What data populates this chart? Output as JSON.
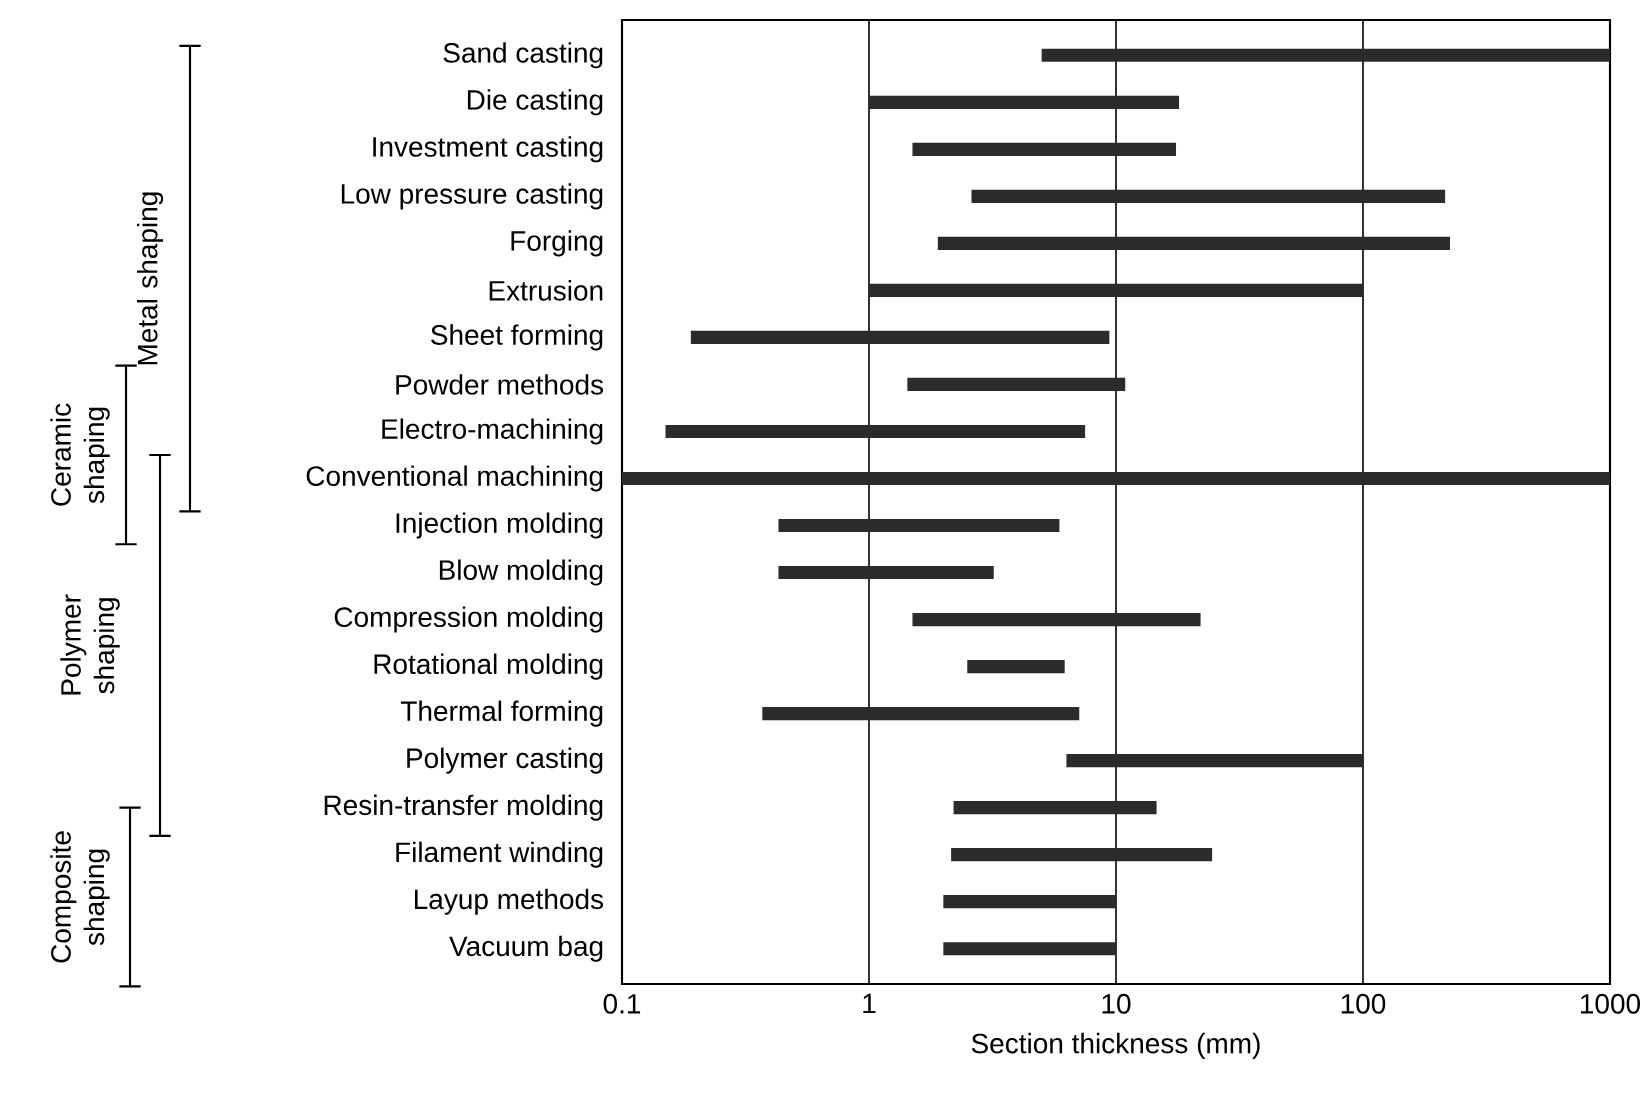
{
  "chart_data": {
    "type": "bar",
    "orientation": "horizontal",
    "xlabel": "Section thickness (mm)",
    "categories": [
      "Sand casting",
      "Die casting",
      "Investment casting",
      "Low pressure casting",
      "Forging",
      "Extrusion",
      "Sheet forming",
      "Powder methods",
      "Electro-machining",
      "Conventional machining",
      "Injection molding",
      "Blow molding",
      "Compression molding",
      "Rotational molding",
      "Thermal forming",
      "Polymer casting",
      "Resin-transfer molding",
      "Filament winding",
      "Layup methods",
      "Vacuum bag"
    ],
    "base": [
      5,
      1,
      1.5,
      2.6,
      1.9,
      1,
      0.19,
      1.43,
      0.15,
      0.1,
      0.43,
      0.43,
      1.5,
      2.5,
      0.37,
      6.3,
      2.2,
      2.15,
      2,
      2
    ],
    "values": [
      995,
      17,
      16,
      212.4,
      223.1,
      99,
      9.21,
      9.47,
      7.35,
      999.9,
      5.47,
      2.77,
      20.5,
      3.7,
      6.73,
      93.7,
      12.4,
      22.35,
      8,
      8
    ],
    "color": "#2b2b2b",
    "log": "x",
    "xlim": [
      0.1,
      1000
    ],
    "xticks": [
      0.1,
      1,
      10,
      100,
      1000
    ],
    "grid": "x",
    "annotations": [
      "Metal shaping",
      "Ceramic shaping",
      "Polymer shaping",
      "Composite shaping"
    ]
  }
}
